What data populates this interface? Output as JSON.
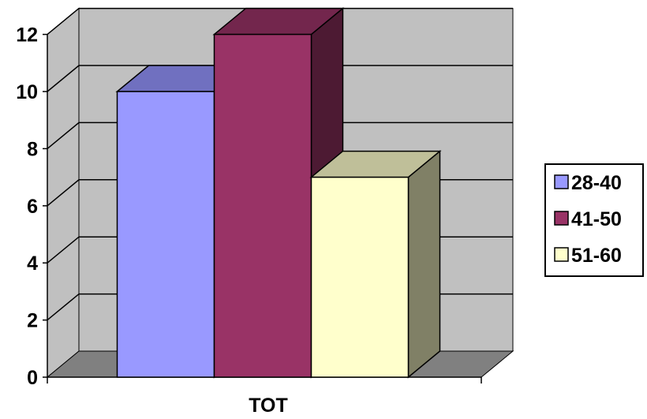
{
  "chart_data": {
    "type": "bar",
    "categories": [
      "TOT"
    ],
    "series": [
      {
        "name": "28-40",
        "values": [
          10
        ]
      },
      {
        "name": "41-50",
        "values": [
          12
        ]
      },
      {
        "name": "51-60",
        "values": [
          7
        ]
      }
    ],
    "title": "",
    "xlabel": "",
    "ylabel": "",
    "ylim": [
      0,
      12
    ],
    "yticks": [
      0,
      2,
      4,
      6,
      8,
      10,
      12
    ],
    "grid": true,
    "three_d": true,
    "legend_position": "right",
    "colors": {
      "28-40": {
        "front": "#9999ff",
        "top": "#7070c0",
        "side": "#5a5aa0"
      },
      "41-50": {
        "front": "#993366",
        "top": "#73264d",
        "side": "#4d1a33"
      },
      "51-60": {
        "front": "#ffffcc",
        "top": "#bfbf99",
        "side": "#808066"
      },
      "wall": "#c0c0c0",
      "floor": "#808080",
      "gridline": "#000000"
    }
  }
}
